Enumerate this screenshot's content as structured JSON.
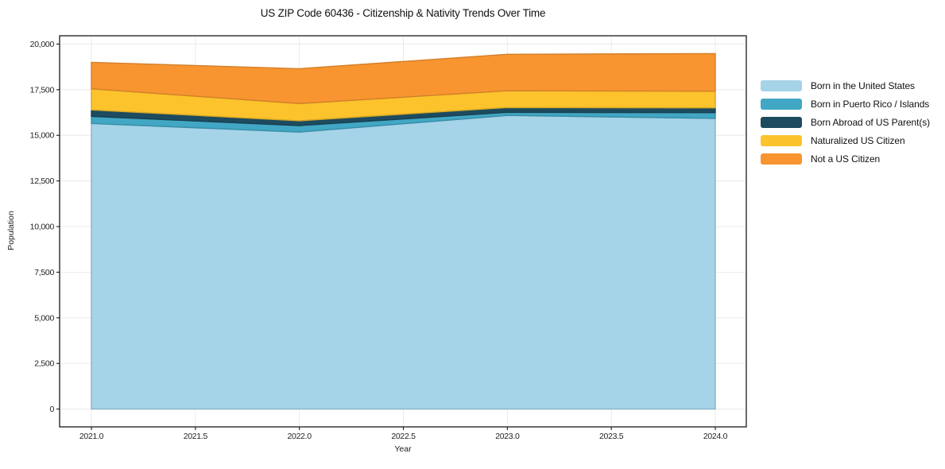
{
  "chart_data": {
    "type": "area",
    "stacked": true,
    "title": "US ZIP Code 60436 - Citizenship & Nativity Trends Over Time",
    "xlabel": "Year",
    "ylabel": "Population",
    "x": [
      2021,
      2022,
      2023,
      2024
    ],
    "series": [
      {
        "name": "Born in the United States",
        "color": "#a5d3e8",
        "values": [
          15650,
          15175,
          16090,
          15925
        ]
      },
      {
        "name": "Born in Puerto Rico / Islands",
        "color": "#41a7c4",
        "values": [
          390,
          360,
          170,
          320
        ]
      },
      {
        "name": "Born Abroad of US Parent(s)",
        "color": "#1d4b5f",
        "values": [
          350,
          265,
          260,
          260
        ]
      },
      {
        "name": "Naturalized US Citizen",
        "color": "#fcc32c",
        "values": [
          1160,
          940,
          920,
          915
        ]
      },
      {
        "name": "Not a US Citizen",
        "color": "#f89530",
        "values": [
          1450,
          1910,
          2000,
          2060
        ]
      }
    ],
    "totals": [
      19000,
      18650,
      19440,
      19480
    ],
    "xticks": [
      2021.0,
      2021.5,
      2022.0,
      2022.5,
      2023.0,
      2023.5,
      2024.0
    ],
    "yticks": [
      0,
      2500,
      5000,
      7500,
      10000,
      12500,
      15000,
      17500,
      20000
    ],
    "xlim": [
      2020.847,
      2024.149
    ],
    "ylim": [
      -975,
      20455
    ],
    "grid": true,
    "grid_color": "#e8e8e8",
    "spine_color": "#1a1a1a",
    "tick_label_color": "#222222",
    "legend_position": "outside-right"
  }
}
